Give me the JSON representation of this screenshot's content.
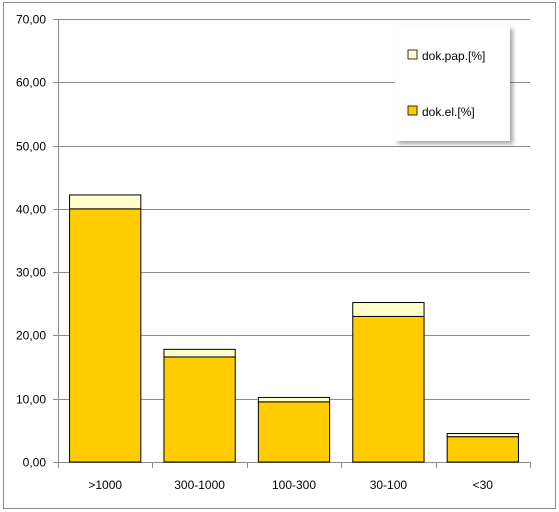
{
  "chart_data": {
    "type": "bar",
    "stacked": true,
    "categories": [
      ">1000",
      "300-1000",
      "100-300",
      "30-100",
      "<30"
    ],
    "series": [
      {
        "name": "dok.el.[%]",
        "color": "#ffcc00",
        "values": [
          40.0,
          16.6,
          9.5,
          23.0,
          4.0
        ]
      },
      {
        "name": "dok.pap.[%]",
        "color": "#ffffcc",
        "values": [
          2.2,
          1.2,
          0.7,
          2.2,
          0.5
        ]
      }
    ],
    "ylim": [
      0,
      70
    ],
    "yticks": [
      "0,00",
      "10,00",
      "20,00",
      "30,00",
      "40,00",
      "50,00",
      "60,00",
      "70,00"
    ],
    "grid": true,
    "legend_position": "top-right"
  }
}
